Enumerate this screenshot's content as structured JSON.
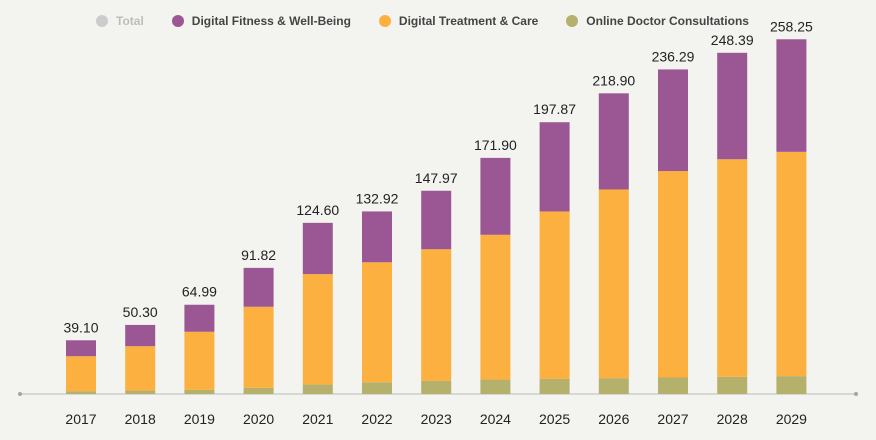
{
  "chart_data": {
    "type": "bar",
    "stacked": true,
    "categories": [
      "2017",
      "2018",
      "2019",
      "2020",
      "2021",
      "2022",
      "2023",
      "2024",
      "2025",
      "2026",
      "2027",
      "2028",
      "2029"
    ],
    "totals": [
      39.1,
      50.3,
      64.99,
      91.82,
      124.6,
      132.92,
      147.97,
      171.9,
      197.87,
      218.9,
      236.29,
      248.39,
      258.25
    ],
    "total_labels": [
      "39.10",
      "50.30",
      "64.99",
      "91.82",
      "124.60",
      "132.92",
      "147.97",
      "171.90",
      "197.87",
      "218.90",
      "236.29",
      "248.39",
      "258.25"
    ],
    "series": [
      {
        "name": "Online Doctor Consultations",
        "color": "#b5b06b",
        "values": [
          2.0,
          2.5,
          3.0,
          4.5,
          7.0,
          8.5,
          9.5,
          10.5,
          11.0,
          11.5,
          12.0,
          12.5,
          13.0
        ]
      },
      {
        "name": "Digital Treatment & Care",
        "color": "#fbb040",
        "values": [
          25.5,
          32.3,
          42.3,
          59.0,
          80.3,
          87.4,
          95.9,
          105.4,
          121.9,
          137.4,
          150.3,
          158.4,
          163.3
        ]
      },
      {
        "name": "Digital Fitness & Well-Being",
        "color": "#9b5793",
        "values": [
          11.6,
          15.5,
          19.69,
          28.32,
          37.3,
          37.02,
          42.57,
          56.0,
          64.97,
          70.0,
          73.99,
          77.49,
          81.95
        ]
      }
    ],
    "legend": [
      {
        "name": "Total",
        "color": "#cccccc",
        "disabled": true
      },
      {
        "name": "Digital Fitness & Well-Being",
        "color": "#9b5793",
        "disabled": false
      },
      {
        "name": "Digital Treatment & Care",
        "color": "#fbb040",
        "disabled": false
      },
      {
        "name": "Online Doctor Consultations",
        "color": "#b5b06b",
        "disabled": false
      }
    ],
    "ylim": [
      0,
      265
    ],
    "title": "",
    "xlabel": "",
    "ylabel": "",
    "legend_position": "top"
  }
}
